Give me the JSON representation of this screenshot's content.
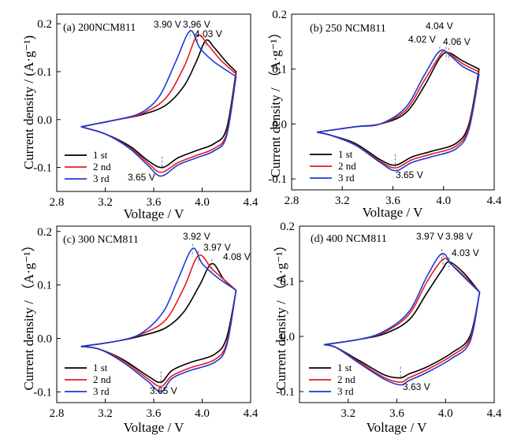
{
  "colors": {
    "series1": "#000000",
    "series2": "#e8191d",
    "series3": "#1a3bd9"
  },
  "chart_data": [
    {
      "type": "line",
      "panel": "a",
      "title": "(a) 200NCM811",
      "xlabel": "Voltage / V",
      "ylabel": "Current density / (A·g⁻¹)",
      "xlim": [
        2.8,
        4.4
      ],
      "ylim": [
        -0.15,
        0.22
      ],
      "xticks": [
        "2.8",
        "3.2",
        "3.6",
        "4.0",
        "4.4"
      ],
      "yticks": [
        "-0.1",
        "0.0",
        "0.1",
        "0.2"
      ],
      "legend": [
        "1 st",
        "2 nd",
        "3 rd"
      ],
      "annotations": [
        "3.90 V",
        "3.96 V",
        "4.03 V",
        "3.65 V"
      ],
      "series": [
        {
          "name": "1 st",
          "upper": [
            [
              3.0,
              -0.015
            ],
            [
              3.3,
              0.0
            ],
            [
              3.5,
              0.01
            ],
            [
              3.7,
              0.03
            ],
            [
              3.85,
              0.07
            ],
            [
              3.95,
              0.12
            ],
            [
              4.03,
              0.165
            ],
            [
              4.1,
              0.15
            ],
            [
              4.2,
              0.12
            ],
            [
              4.28,
              0.1
            ]
          ],
          "lower": [
            [
              4.28,
              0.1
            ],
            [
              4.2,
              -0.02
            ],
            [
              4.1,
              -0.05
            ],
            [
              3.95,
              -0.065
            ],
            [
              3.8,
              -0.08
            ],
            [
              3.67,
              -0.1
            ],
            [
              3.55,
              -0.085
            ],
            [
              3.4,
              -0.055
            ],
            [
              3.2,
              -0.03
            ],
            [
              3.0,
              -0.015
            ]
          ]
        },
        {
          "name": "2 nd",
          "upper": [
            [
              3.0,
              -0.015
            ],
            [
              3.3,
              0.0
            ],
            [
              3.5,
              0.012
            ],
            [
              3.7,
              0.045
            ],
            [
              3.85,
              0.11
            ],
            [
              3.96,
              0.175
            ],
            [
              4.05,
              0.155
            ],
            [
              4.15,
              0.125
            ],
            [
              4.28,
              0.095
            ]
          ],
          "lower": [
            [
              4.28,
              0.095
            ],
            [
              4.2,
              -0.03
            ],
            [
              4.1,
              -0.06
            ],
            [
              3.95,
              -0.075
            ],
            [
              3.8,
              -0.09
            ],
            [
              3.66,
              -0.11
            ],
            [
              3.55,
              -0.09
            ],
            [
              3.4,
              -0.058
            ],
            [
              3.2,
              -0.03
            ],
            [
              3.0,
              -0.015
            ]
          ]
        },
        {
          "name": "3 rd",
          "upper": [
            [
              3.0,
              -0.015
            ],
            [
              3.3,
              0.0
            ],
            [
              3.5,
              0.015
            ],
            [
              3.65,
              0.05
            ],
            [
              3.78,
              0.12
            ],
            [
              3.9,
              0.185
            ],
            [
              3.98,
              0.15
            ],
            [
              4.1,
              0.12
            ],
            [
              4.28,
              0.09
            ]
          ],
          "lower": [
            [
              4.28,
              0.09
            ],
            [
              4.2,
              -0.035
            ],
            [
              4.1,
              -0.065
            ],
            [
              3.95,
              -0.08
            ],
            [
              3.8,
              -0.095
            ],
            [
              3.66,
              -0.118
            ],
            [
              3.55,
              -0.095
            ],
            [
              3.4,
              -0.06
            ],
            [
              3.2,
              -0.03
            ],
            [
              3.0,
              -0.015
            ]
          ]
        }
      ]
    },
    {
      "type": "line",
      "panel": "b",
      "title": "(b) 250 NCM811",
      "xlabel": "Voltage / V",
      "ylabel": "Current density / （A·g⁻¹）",
      "xlim": [
        2.8,
        4.4
      ],
      "ylim": [
        -0.12,
        0.2
      ],
      "xticks": [
        "2.8",
        "3.2",
        "3.6",
        "4.0",
        "4.4"
      ],
      "yticks": [
        "-0.1",
        "0.0",
        "0.1",
        "0.2"
      ],
      "legend": [
        "1 st",
        "2 nd",
        "3 rd"
      ],
      "annotations": [
        "4.02 V",
        "4.04 V",
        "4.06 V",
        "3.65 V"
      ],
      "series": [
        {
          "name": "1 st",
          "upper": [
            [
              3.0,
              -0.015
            ],
            [
              3.3,
              -0.005
            ],
            [
              3.5,
              0.0
            ],
            [
              3.7,
              0.02
            ],
            [
              3.85,
              0.07
            ],
            [
              3.97,
              0.12
            ],
            [
              4.04,
              0.13
            ],
            [
              4.15,
              0.115
            ],
            [
              4.28,
              0.1
            ]
          ],
          "lower": [
            [
              4.28,
              0.1
            ],
            [
              4.2,
              0.0
            ],
            [
              4.1,
              -0.035
            ],
            [
              3.9,
              -0.05
            ],
            [
              3.75,
              -0.06
            ],
            [
              3.62,
              -0.075
            ],
            [
              3.5,
              -0.065
            ],
            [
              3.3,
              -0.035
            ],
            [
              3.1,
              -0.02
            ],
            [
              3.0,
              -0.015
            ]
          ]
        },
        {
          "name": "2 nd",
          "upper": [
            [
              3.0,
              -0.015
            ],
            [
              3.3,
              -0.005
            ],
            [
              3.5,
              0.0
            ],
            [
              3.7,
              0.025
            ],
            [
              3.85,
              0.08
            ],
            [
              3.98,
              0.128
            ],
            [
              4.02,
              0.132
            ],
            [
              4.15,
              0.11
            ],
            [
              4.28,
              0.095
            ]
          ],
          "lower": [
            [
              4.28,
              0.095
            ],
            [
              4.2,
              -0.005
            ],
            [
              4.1,
              -0.04
            ],
            [
              3.9,
              -0.055
            ],
            [
              3.75,
              -0.065
            ],
            [
              3.62,
              -0.08
            ],
            [
              3.5,
              -0.068
            ],
            [
              3.3,
              -0.037
            ],
            [
              3.1,
              -0.02
            ],
            [
              3.0,
              -0.015
            ]
          ]
        },
        {
          "name": "3 rd",
          "upper": [
            [
              3.0,
              -0.015
            ],
            [
              3.3,
              -0.005
            ],
            [
              3.5,
              0.0
            ],
            [
              3.7,
              0.03
            ],
            [
              3.85,
              0.09
            ],
            [
              3.97,
              0.133
            ],
            [
              4.05,
              0.125
            ],
            [
              4.15,
              0.105
            ],
            [
              4.28,
              0.09
            ]
          ],
          "lower": [
            [
              4.28,
              0.09
            ],
            [
              4.2,
              -0.01
            ],
            [
              4.1,
              -0.045
            ],
            [
              3.9,
              -0.06
            ],
            [
              3.75,
              -0.07
            ],
            [
              3.62,
              -0.085
            ],
            [
              3.5,
              -0.07
            ],
            [
              3.3,
              -0.038
            ],
            [
              3.1,
              -0.02
            ],
            [
              3.0,
              -0.015
            ]
          ]
        }
      ]
    },
    {
      "type": "line",
      "panel": "c",
      "title": "(c) 300 NCM811",
      "xlabel": "Voltage / V",
      "ylabel": "Current density / （A·g⁻¹）",
      "xlim": [
        2.8,
        4.4
      ],
      "ylim": [
        -0.12,
        0.21
      ],
      "xticks": [
        "2.8",
        "3.2",
        "3.6",
        "4.0",
        "4.4"
      ],
      "yticks": [
        "-0.1",
        "0.0",
        "0.1",
        "0.2"
      ],
      "legend": [
        "1 st",
        "2 nd",
        "3 rd"
      ],
      "annotations": [
        "3.92 V",
        "3.97 V",
        "4.08 V",
        "3.65 V"
      ],
      "series": [
        {
          "name": "1 st",
          "upper": [
            [
              3.0,
              -0.015
            ],
            [
              3.3,
              -0.005
            ],
            [
              3.5,
              0.005
            ],
            [
              3.7,
              0.02
            ],
            [
              3.85,
              0.05
            ],
            [
              3.98,
              0.1
            ],
            [
              4.08,
              0.14
            ],
            [
              4.18,
              0.11
            ],
            [
              4.28,
              0.09
            ]
          ],
          "lower": [
            [
              4.28,
              0.09
            ],
            [
              4.2,
              0.0
            ],
            [
              4.1,
              -0.03
            ],
            [
              3.9,
              -0.045
            ],
            [
              3.75,
              -0.06
            ],
            [
              3.66,
              -0.082
            ],
            [
              3.55,
              -0.07
            ],
            [
              3.35,
              -0.04
            ],
            [
              3.15,
              -0.02
            ],
            [
              3.0,
              -0.015
            ]
          ]
        },
        {
          "name": "2 nd",
          "upper": [
            [
              3.0,
              -0.015
            ],
            [
              3.3,
              -0.005
            ],
            [
              3.5,
              0.008
            ],
            [
              3.7,
              0.035
            ],
            [
              3.85,
              0.095
            ],
            [
              3.97,
              0.155
            ],
            [
              4.08,
              0.13
            ],
            [
              4.18,
              0.11
            ],
            [
              4.28,
              0.09
            ]
          ],
          "lower": [
            [
              4.28,
              0.09
            ],
            [
              4.2,
              -0.01
            ],
            [
              4.1,
              -0.04
            ],
            [
              3.9,
              -0.055
            ],
            [
              3.75,
              -0.07
            ],
            [
              3.66,
              -0.09
            ],
            [
              3.55,
              -0.075
            ],
            [
              3.35,
              -0.042
            ],
            [
              3.15,
              -0.02
            ],
            [
              3.0,
              -0.015
            ]
          ]
        },
        {
          "name": "3 rd",
          "upper": [
            [
              3.0,
              -0.015
            ],
            [
              3.3,
              -0.005
            ],
            [
              3.5,
              0.01
            ],
            [
              3.68,
              0.05
            ],
            [
              3.8,
              0.11
            ],
            [
              3.92,
              0.168
            ],
            [
              4.0,
              0.14
            ],
            [
              4.12,
              0.115
            ],
            [
              4.28,
              0.09
            ]
          ],
          "lower": [
            [
              4.28,
              0.09
            ],
            [
              4.2,
              -0.015
            ],
            [
              4.1,
              -0.045
            ],
            [
              3.9,
              -0.06
            ],
            [
              3.75,
              -0.075
            ],
            [
              3.66,
              -0.1
            ],
            [
              3.55,
              -0.08
            ],
            [
              3.35,
              -0.045
            ],
            [
              3.15,
              -0.02
            ],
            [
              3.0,
              -0.015
            ]
          ]
        }
      ]
    },
    {
      "type": "line",
      "panel": "d",
      "title": "(d) 400 NCM811",
      "xlabel": "Voltage / V",
      "ylabel": "Current density / （A·g⁻¹）",
      "xlim": [
        2.8,
        4.4
      ],
      "ylim": [
        -0.12,
        0.2
      ],
      "xticks": [
        "3.2",
        "3.6",
        "4.0",
        "4.4"
      ],
      "yticks": [
        "-0.1",
        "0.0",
        "0.1",
        "0.2"
      ],
      "legend": [
        "1 st",
        "2 nd",
        "3 rd"
      ],
      "annotations": [
        "3.97 V",
        "3.98 V",
        "4.03 V",
        "3.63 V"
      ],
      "series": [
        {
          "name": "1 st",
          "upper": [
            [
              3.0,
              -0.015
            ],
            [
              3.3,
              -0.005
            ],
            [
              3.5,
              0.005
            ],
            [
              3.7,
              0.03
            ],
            [
              3.85,
              0.08
            ],
            [
              3.97,
              0.12
            ],
            [
              4.03,
              0.135
            ],
            [
              4.15,
              0.115
            ],
            [
              4.28,
              0.08
            ]
          ],
          "lower": [
            [
              4.28,
              0.08
            ],
            [
              4.2,
              0.0
            ],
            [
              4.05,
              -0.03
            ],
            [
              3.85,
              -0.055
            ],
            [
              3.7,
              -0.068
            ],
            [
              3.63,
              -0.075
            ],
            [
              3.5,
              -0.07
            ],
            [
              3.3,
              -0.045
            ],
            [
              3.1,
              -0.02
            ],
            [
              3.0,
              -0.015
            ]
          ]
        },
        {
          "name": "2 nd",
          "upper": [
            [
              3.0,
              -0.015
            ],
            [
              3.3,
              -0.005
            ],
            [
              3.5,
              0.008
            ],
            [
              3.7,
              0.04
            ],
            [
              3.85,
              0.1
            ],
            [
              3.98,
              0.14
            ],
            [
              4.05,
              0.13
            ],
            [
              4.15,
              0.11
            ],
            [
              4.28,
              0.08
            ]
          ],
          "lower": [
            [
              4.28,
              0.08
            ],
            [
              4.2,
              -0.005
            ],
            [
              4.05,
              -0.035
            ],
            [
              3.85,
              -0.06
            ],
            [
              3.7,
              -0.075
            ],
            [
              3.63,
              -0.083
            ],
            [
              3.5,
              -0.075
            ],
            [
              3.3,
              -0.048
            ],
            [
              3.1,
              -0.02
            ],
            [
              3.0,
              -0.015
            ]
          ]
        },
        {
          "name": "3 rd",
          "upper": [
            [
              3.0,
              -0.015
            ],
            [
              3.3,
              -0.005
            ],
            [
              3.5,
              0.01
            ],
            [
              3.7,
              0.045
            ],
            [
              3.85,
              0.11
            ],
            [
              3.97,
              0.15
            ],
            [
              4.05,
              0.13
            ],
            [
              4.15,
              0.108
            ],
            [
              4.28,
              0.08
            ]
          ],
          "lower": [
            [
              4.28,
              0.08
            ],
            [
              4.2,
              -0.01
            ],
            [
              4.05,
              -0.04
            ],
            [
              3.85,
              -0.065
            ],
            [
              3.7,
              -0.08
            ],
            [
              3.63,
              -0.088
            ],
            [
              3.5,
              -0.078
            ],
            [
              3.3,
              -0.05
            ],
            [
              3.1,
              -0.02
            ],
            [
              3.0,
              -0.015
            ]
          ]
        }
      ]
    }
  ]
}
